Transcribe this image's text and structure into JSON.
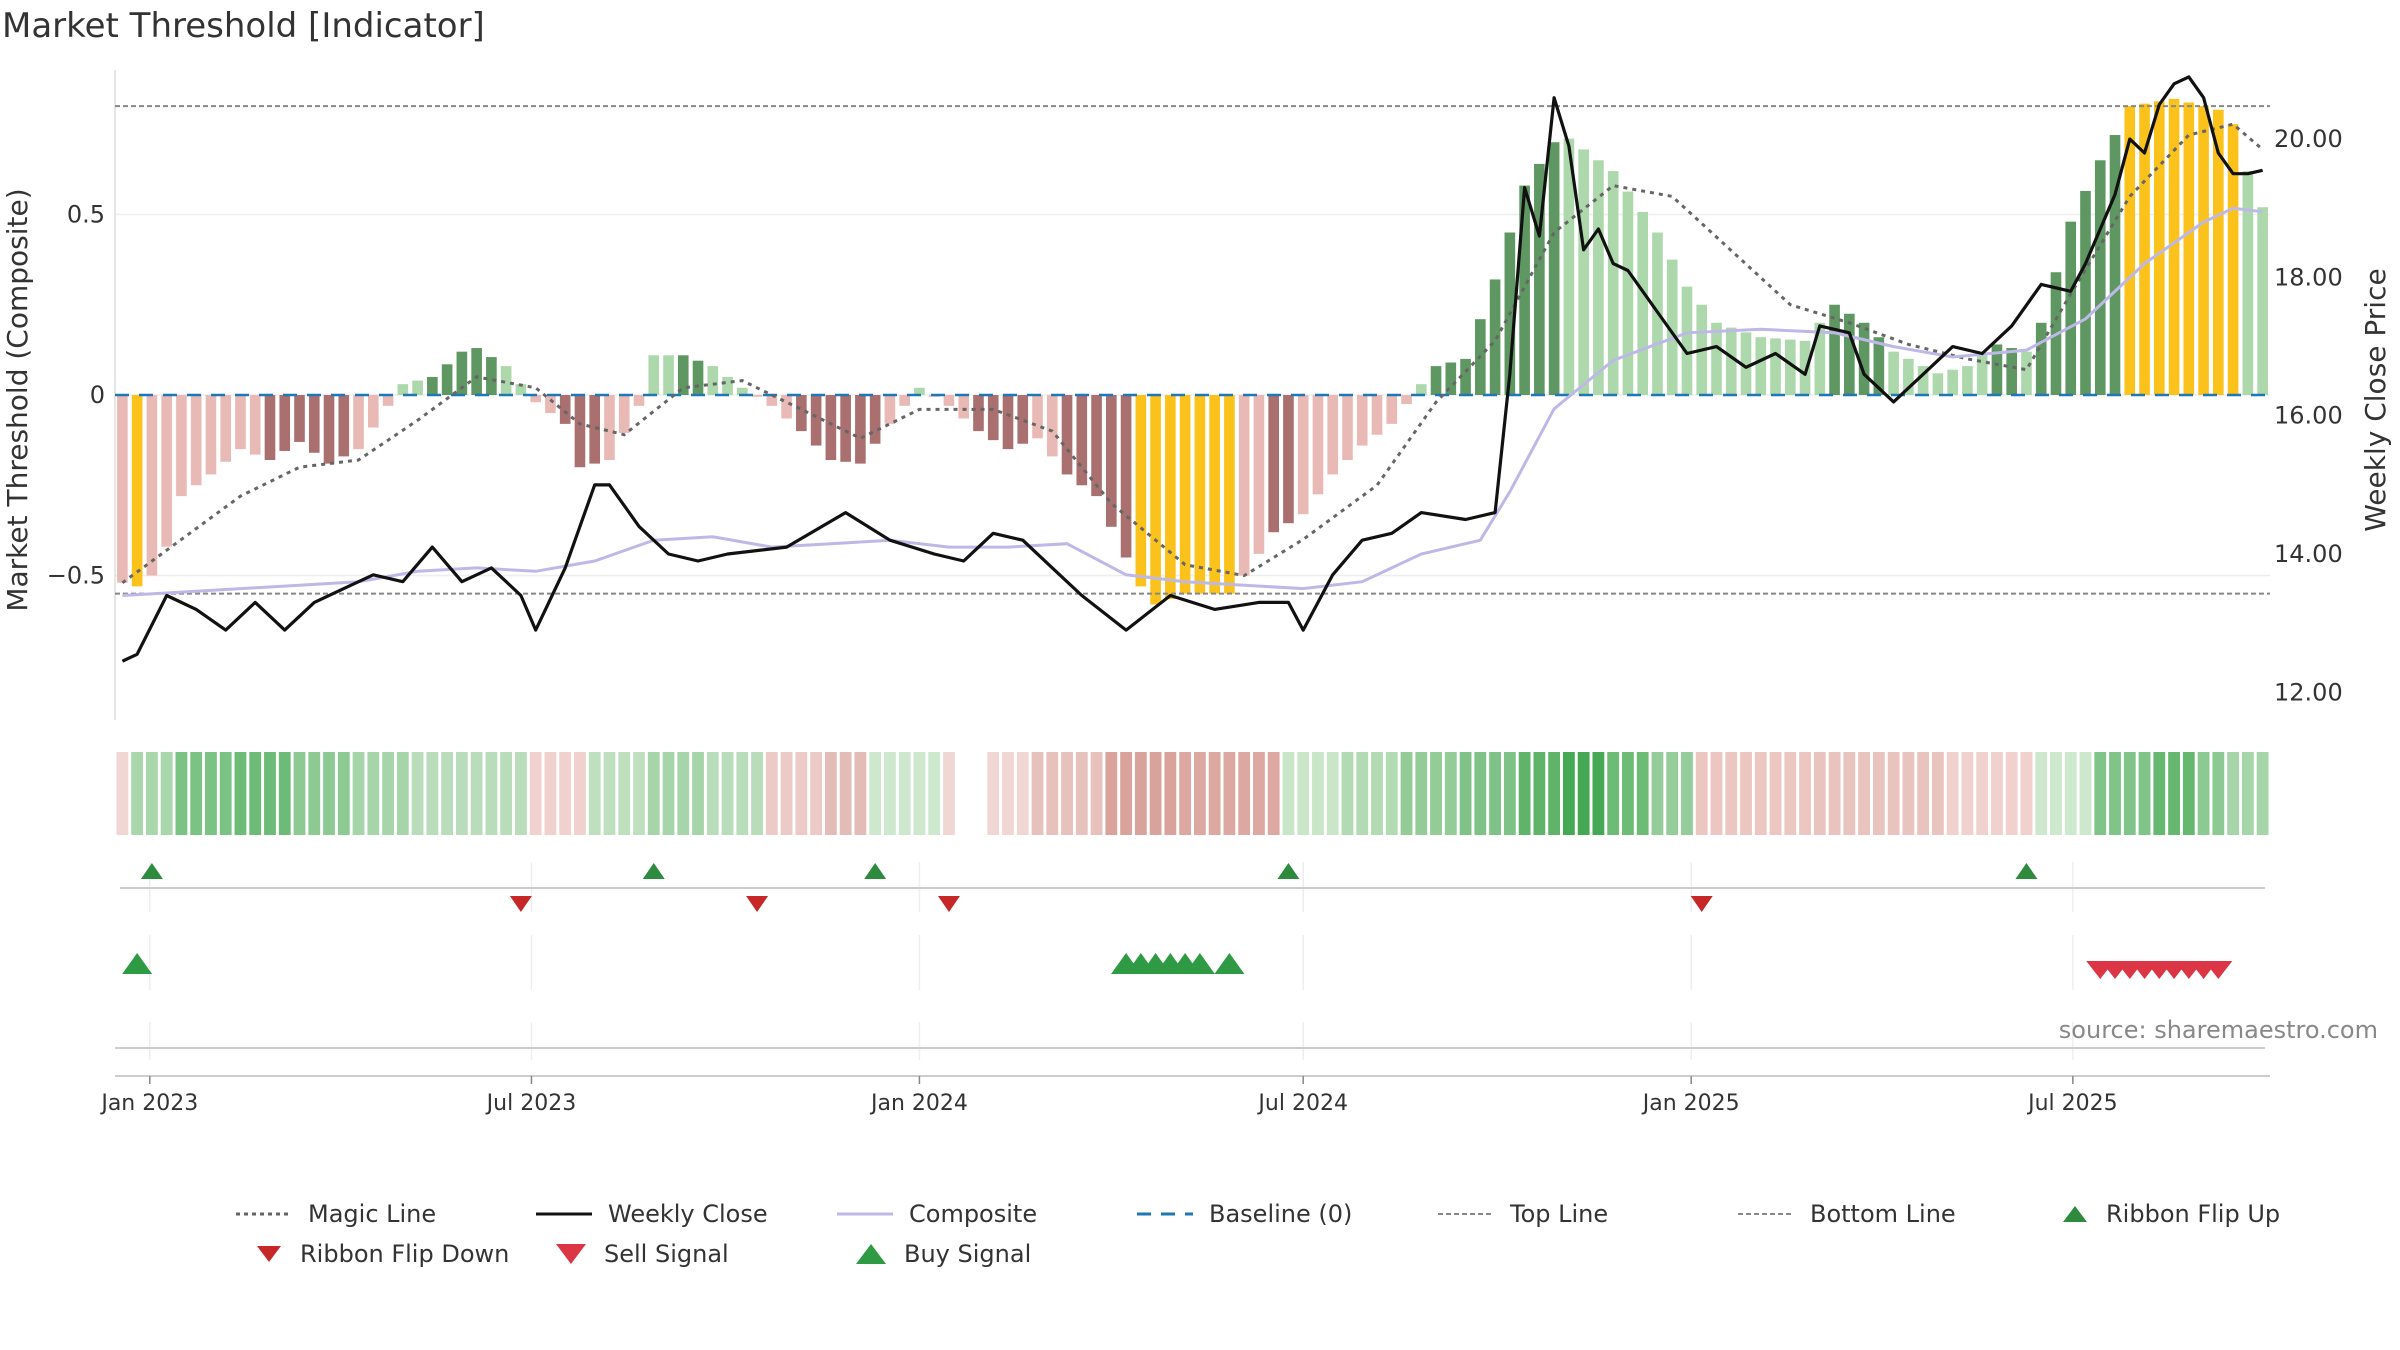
{
  "title": "Market Threshold [Indicator]",
  "source": "source: sharemaestro.com",
  "colors": {
    "positive_strong": "#5e9762",
    "positive_light": "#acd8ac",
    "negative_strong": "#a9706f",
    "negative_light": "#e9bab5",
    "highlight": "#fbc21b",
    "weekly_close": "#111111",
    "composite": "#bdb8e6",
    "magic_line": "#666666",
    "baseline": "#1f77b4",
    "threshold_lines": "#888888",
    "flip_up": "#2e8b3e",
    "flip_down": "#c62828",
    "sell_signal": "#dc3545",
    "buy_signal": "#2e9a44"
  },
  "chart_data": {
    "type": "bar",
    "left_axis": {
      "label": "Market Threshold (Composite)",
      "range": [
        -0.9,
        0.9
      ],
      "ticks": [
        -0.5,
        0,
        0.5
      ],
      "tick_labels": [
        "−0.5",
        "0",
        "0.5"
      ]
    },
    "right_axis": {
      "label": "Weekly Close Price",
      "range": [
        11.6,
        21.0
      ],
      "ticks": [
        12,
        14,
        16,
        18,
        20
      ],
      "tick_labels": [
        "12.00",
        "14.00",
        "16.00",
        "18.00",
        "20.00"
      ]
    },
    "x_axis": {
      "start": "2022-12-19",
      "end": "2025-09-29",
      "tick_dates": [
        "2023-01-01",
        "2023-07-01",
        "2024-01-01",
        "2024-07-01",
        "2025-01-01",
        "2025-07-01"
      ],
      "tick_labels": [
        "Jan 2023",
        "Jul 2023",
        "Jan 2024",
        "Jul 2024",
        "Jan 2025",
        "Jul 2025"
      ]
    },
    "top_line": 0.8,
    "bottom_line": -0.55,
    "baseline": 0,
    "bar_anchors": [
      [
        "2022-12-19",
        -0.52,
        "n"
      ],
      [
        "2022-12-26",
        -0.53,
        "y"
      ],
      [
        "2023-01-02",
        -0.5,
        "n"
      ],
      [
        "2023-01-09",
        -0.42,
        "n"
      ],
      [
        "2023-01-16",
        -0.28,
        "n"
      ],
      [
        "2023-01-30",
        -0.22,
        "n"
      ],
      [
        "2023-02-13",
        -0.15,
        "n"
      ],
      [
        "2023-02-27",
        -0.18,
        "N"
      ],
      [
        "2023-03-13",
        -0.13,
        "N"
      ],
      [
        "2023-03-27",
        -0.19,
        "N"
      ],
      [
        "2023-04-10",
        -0.15,
        "n"
      ],
      [
        "2023-04-24",
        -0.03,
        "n"
      ],
      [
        "2023-05-01",
        0.03,
        "p"
      ],
      [
        "2023-05-15",
        0.05,
        "P"
      ],
      [
        "2023-05-29",
        0.12,
        "P"
      ],
      [
        "2023-06-05",
        0.13,
        "P"
      ],
      [
        "2023-06-19",
        0.08,
        "p"
      ],
      [
        "2023-07-03",
        -0.02,
        "n"
      ],
      [
        "2023-07-17",
        -0.08,
        "N"
      ],
      [
        "2023-07-24",
        -0.2,
        "N"
      ],
      [
        "2023-08-07",
        -0.18,
        "n"
      ],
      [
        "2023-08-21",
        -0.03,
        "n"
      ],
      [
        "2023-08-28",
        0.11,
        "p"
      ],
      [
        "2023-09-11",
        0.11,
        "P"
      ],
      [
        "2023-09-25",
        0.08,
        "p"
      ],
      [
        "2023-10-09",
        0.02,
        "p"
      ],
      [
        "2023-10-23",
        -0.03,
        "n"
      ],
      [
        "2023-11-06",
        -0.1,
        "N"
      ],
      [
        "2023-11-20",
        -0.18,
        "N"
      ],
      [
        "2023-12-04",
        -0.19,
        "N"
      ],
      [
        "2023-12-18",
        -0.08,
        "n"
      ],
      [
        "2024-01-01",
        0.02,
        "p"
      ],
      [
        "2024-01-15",
        -0.03,
        "n"
      ],
      [
        "2024-01-29",
        -0.1,
        "N"
      ],
      [
        "2024-02-12",
        -0.15,
        "N"
      ],
      [
        "2024-02-26",
        -0.12,
        "n"
      ],
      [
        "2024-03-11",
        -0.22,
        "N"
      ],
      [
        "2024-03-25",
        -0.28,
        "N"
      ],
      [
        "2024-04-08",
        -0.45,
        "N"
      ],
      [
        "2024-04-15",
        -0.53,
        "y"
      ],
      [
        "2024-04-22",
        -0.58,
        "y"
      ],
      [
        "2024-05-06",
        -0.55,
        "y"
      ],
      [
        "2024-05-27",
        -0.55,
        "y"
      ],
      [
        "2024-06-03",
        -0.5,
        "n"
      ],
      [
        "2024-06-17",
        -0.38,
        "N"
      ],
      [
        "2024-07-01",
        -0.33,
        "n"
      ],
      [
        "2024-07-15",
        -0.22,
        "n"
      ],
      [
        "2024-07-29",
        -0.14,
        "n"
      ],
      [
        "2024-08-12",
        -0.08,
        "n"
      ],
      [
        "2024-08-26",
        0.03,
        "p"
      ],
      [
        "2024-09-02",
        0.08,
        "P"
      ],
      [
        "2024-09-16",
        0.1,
        "P"
      ],
      [
        "2024-09-30",
        0.32,
        "P"
      ],
      [
        "2024-10-14",
        0.58,
        "P"
      ],
      [
        "2024-10-28",
        0.7,
        "P"
      ],
      [
        "2024-11-04",
        0.71,
        "p"
      ],
      [
        "2024-11-25",
        0.62,
        "p"
      ],
      [
        "2024-12-16",
        0.45,
        "p"
      ],
      [
        "2024-12-30",
        0.3,
        "p"
      ],
      [
        "2025-01-13",
        0.2,
        "p"
      ],
      [
        "2025-02-03",
        0.16,
        "p"
      ],
      [
        "2025-02-24",
        0.15,
        "p"
      ],
      [
        "2025-03-10",
        0.25,
        "P"
      ],
      [
        "2025-03-24",
        0.2,
        "P"
      ],
      [
        "2025-04-07",
        0.12,
        "p"
      ],
      [
        "2025-04-28",
        0.06,
        "p"
      ],
      [
        "2025-05-12",
        0.08,
        "p"
      ],
      [
        "2025-05-26",
        0.14,
        "P"
      ],
      [
        "2025-06-09",
        0.12,
        "p"
      ],
      [
        "2025-06-16",
        0.2,
        "P"
      ],
      [
        "2025-06-30",
        0.48,
        "P"
      ],
      [
        "2025-07-14",
        0.65,
        "P"
      ],
      [
        "2025-07-21",
        0.72,
        "P"
      ],
      [
        "2025-07-28",
        0.8,
        "y"
      ],
      [
        "2025-08-18",
        0.82,
        "y"
      ],
      [
        "2025-09-08",
        0.79,
        "y"
      ],
      [
        "2025-09-15",
        0.75,
        "y"
      ],
      [
        "2025-09-22",
        0.62,
        "p"
      ],
      [
        "2025-09-29",
        0.52,
        "p"
      ]
    ],
    "magic_line": [
      [
        "2022-12-19",
        -0.52
      ],
      [
        "2023-01-16",
        -0.4
      ],
      [
        "2023-02-13",
        -0.28
      ],
      [
        "2023-03-13",
        -0.2
      ],
      [
        "2023-04-10",
        -0.18
      ],
      [
        "2023-05-08",
        -0.07
      ],
      [
        "2023-06-05",
        0.05
      ],
      [
        "2023-07-03",
        0.02
      ],
      [
        "2023-07-24",
        -0.08
      ],
      [
        "2023-08-14",
        -0.11
      ],
      [
        "2023-09-11",
        0.02
      ],
      [
        "2023-10-09",
        0.04
      ],
      [
        "2023-11-06",
        -0.04
      ],
      [
        "2023-12-04",
        -0.12
      ],
      [
        "2024-01-01",
        -0.04
      ],
      [
        "2024-02-05",
        -0.04
      ],
      [
        "2024-03-04",
        -0.1
      ],
      [
        "2024-04-01",
        -0.3
      ],
      [
        "2024-05-06",
        -0.47
      ],
      [
        "2024-06-03",
        -0.5
      ],
      [
        "2024-07-01",
        -0.4
      ],
      [
        "2024-08-05",
        -0.25
      ],
      [
        "2024-09-02",
        -0.02
      ],
      [
        "2024-09-30",
        0.15
      ],
      [
        "2024-10-28",
        0.45
      ],
      [
        "2024-11-25",
        0.58
      ],
      [
        "2024-12-23",
        0.55
      ],
      [
        "2025-01-20",
        0.4
      ],
      [
        "2025-02-17",
        0.25
      ],
      [
        "2025-03-17",
        0.2
      ],
      [
        "2025-04-14",
        0.14
      ],
      [
        "2025-05-12",
        0.1
      ],
      [
        "2025-06-09",
        0.07
      ],
      [
        "2025-06-30",
        0.28
      ],
      [
        "2025-07-28",
        0.55
      ],
      [
        "2025-08-25",
        0.72
      ],
      [
        "2025-09-15",
        0.75
      ],
      [
        "2025-09-29",
        0.68
      ]
    ],
    "composite": [
      [
        "2022-12-19",
        13.4
      ],
      [
        "2023-01-16",
        13.45
      ],
      [
        "2023-02-13",
        13.5
      ],
      [
        "2023-03-13",
        13.55
      ],
      [
        "2023-04-10",
        13.6
      ],
      [
        "2023-05-08",
        13.75
      ],
      [
        "2023-06-05",
        13.8
      ],
      [
        "2023-07-03",
        13.75
      ],
      [
        "2023-07-31",
        13.9
      ],
      [
        "2023-08-28",
        14.2
      ],
      [
        "2023-09-25",
        14.25
      ],
      [
        "2023-10-23",
        14.1
      ],
      [
        "2023-11-20",
        14.15
      ],
      [
        "2023-12-18",
        14.2
      ],
      [
        "2024-01-15",
        14.1
      ],
      [
        "2024-02-12",
        14.1
      ],
      [
        "2024-03-11",
        14.15
      ],
      [
        "2024-04-08",
        13.7
      ],
      [
        "2024-05-06",
        13.6
      ],
      [
        "2024-06-03",
        13.55
      ],
      [
        "2024-07-01",
        13.5
      ],
      [
        "2024-07-29",
        13.6
      ],
      [
        "2024-08-26",
        14.0
      ],
      [
        "2024-09-23",
        14.2
      ],
      [
        "2024-10-07",
        14.9
      ],
      [
        "2024-10-28",
        16.1
      ],
      [
        "2024-11-25",
        16.8
      ],
      [
        "2024-12-30",
        17.2
      ],
      [
        "2025-02-03",
        17.25
      ],
      [
        "2025-03-10",
        17.2
      ],
      [
        "2025-04-07",
        17.0
      ],
      [
        "2025-05-05",
        16.85
      ],
      [
        "2025-06-09",
        16.95
      ],
      [
        "2025-07-07",
        17.4
      ],
      [
        "2025-08-04",
        18.2
      ],
      [
        "2025-09-01",
        18.8
      ],
      [
        "2025-09-15",
        19.0
      ],
      [
        "2025-09-29",
        18.95
      ]
    ],
    "weekly_close": [
      [
        "2022-12-19",
        12.45
      ],
      [
        "2022-12-26",
        12.55
      ],
      [
        "2023-01-09",
        13.4
      ],
      [
        "2023-01-23",
        13.2
      ],
      [
        "2023-02-06",
        12.9
      ],
      [
        "2023-02-20",
        13.3
      ],
      [
        "2023-03-06",
        12.9
      ],
      [
        "2023-03-20",
        13.3
      ],
      [
        "2023-04-03",
        13.5
      ],
      [
        "2023-04-17",
        13.7
      ],
      [
        "2023-05-01",
        13.6
      ],
      [
        "2023-05-15",
        14.1
      ],
      [
        "2023-05-29",
        13.6
      ],
      [
        "2023-06-12",
        13.8
      ],
      [
        "2023-06-26",
        13.4
      ],
      [
        "2023-07-03",
        12.9
      ],
      [
        "2023-07-17",
        13.8
      ],
      [
        "2023-07-31",
        15.0
      ],
      [
        "2023-08-07",
        15.0
      ],
      [
        "2023-08-21",
        14.4
      ],
      [
        "2023-09-04",
        14.0
      ],
      [
        "2023-09-18",
        13.9
      ],
      [
        "2023-10-02",
        14.0
      ],
      [
        "2023-10-30",
        14.1
      ],
      [
        "2023-11-27",
        14.6
      ],
      [
        "2023-12-18",
        14.2
      ],
      [
        "2024-01-08",
        14.0
      ],
      [
        "2024-01-22",
        13.9
      ],
      [
        "2024-02-05",
        14.3
      ],
      [
        "2024-02-19",
        14.2
      ],
      [
        "2024-03-04",
        13.8
      ],
      [
        "2024-03-18",
        13.4
      ],
      [
        "2024-04-08",
        12.9
      ],
      [
        "2024-04-29",
        13.4
      ],
      [
        "2024-05-20",
        13.2
      ],
      [
        "2024-06-10",
        13.3
      ],
      [
        "2024-06-24",
        13.3
      ],
      [
        "2024-07-01",
        12.9
      ],
      [
        "2024-07-15",
        13.7
      ],
      [
        "2024-07-29",
        14.2
      ],
      [
        "2024-08-12",
        14.3
      ],
      [
        "2024-08-26",
        14.6
      ],
      [
        "2024-09-16",
        14.5
      ],
      [
        "2024-09-30",
        14.6
      ],
      [
        "2024-10-07",
        16.6
      ],
      [
        "2024-10-14",
        19.3
      ],
      [
        "2024-10-21",
        18.6
      ],
      [
        "2024-10-28",
        20.6
      ],
      [
        "2024-11-04",
        19.9
      ],
      [
        "2024-11-11",
        18.4
      ],
      [
        "2024-11-18",
        18.7
      ],
      [
        "2024-11-25",
        18.2
      ],
      [
        "2024-12-02",
        18.1
      ],
      [
        "2024-12-16",
        17.5
      ],
      [
        "2024-12-30",
        16.9
      ],
      [
        "2025-01-13",
        17.0
      ],
      [
        "2025-01-27",
        16.7
      ],
      [
        "2025-02-10",
        16.9
      ],
      [
        "2025-02-24",
        16.6
      ],
      [
        "2025-03-03",
        17.3
      ],
      [
        "2025-03-17",
        17.2
      ],
      [
        "2025-03-24",
        16.6
      ],
      [
        "2025-04-07",
        16.2
      ],
      [
        "2025-04-21",
        16.6
      ],
      [
        "2025-05-05",
        17.0
      ],
      [
        "2025-05-19",
        16.9
      ],
      [
        "2025-06-02",
        17.3
      ],
      [
        "2025-06-16",
        17.9
      ],
      [
        "2025-06-30",
        17.8
      ],
      [
        "2025-07-07",
        18.2
      ],
      [
        "2025-07-21",
        19.2
      ],
      [
        "2025-07-28",
        20.0
      ],
      [
        "2025-08-04",
        19.8
      ],
      [
        "2025-08-11",
        20.5
      ],
      [
        "2025-08-18",
        20.8
      ],
      [
        "2025-08-25",
        20.9
      ],
      [
        "2025-09-01",
        20.6
      ],
      [
        "2025-09-08",
        19.8
      ],
      [
        "2025-09-15",
        19.5
      ],
      [
        "2025-09-22",
        19.5
      ],
      [
        "2025-09-29",
        19.55
      ]
    ],
    "ribbon": [
      [
        "2022-12-19",
        "#f0d7d4"
      ],
      [
        "2022-12-26",
        "#a9d6ab"
      ],
      [
        "2023-01-16",
        "#7bc285"
      ],
      [
        "2023-02-13",
        "#6cbb76"
      ],
      [
        "2023-03-13",
        "#8dca93"
      ],
      [
        "2023-04-10",
        "#a6d5a9"
      ],
      [
        "2023-05-08",
        "#b9ddba"
      ],
      [
        "2023-07-03",
        "#f0d1ce"
      ],
      [
        "2023-07-31",
        "#bfe0bf"
      ],
      [
        "2023-08-28",
        "#a6d5a9"
      ],
      [
        "2023-09-25",
        "#b9ddba"
      ],
      [
        "2023-10-23",
        "#eccbc7"
      ],
      [
        "2023-11-20",
        "#e4bcb7"
      ],
      [
        "2023-12-11",
        "#cde8cd"
      ],
      [
        "2024-01-15",
        "#f0d7d4"
      ],
      [
        "2024-02-26",
        "#e7c1bc"
      ],
      [
        "2024-04-01",
        "#d9a29b"
      ],
      [
        "2024-05-06",
        "#dca8a1"
      ],
      [
        "2024-06-24",
        "#c9e6c9"
      ],
      [
        "2024-07-22",
        "#b2dab3"
      ],
      [
        "2024-08-19",
        "#93cc97"
      ],
      [
        "2024-09-16",
        "#7fc287"
      ],
      [
        "2024-10-14",
        "#5fb46a"
      ],
      [
        "2024-11-04",
        "#45a854"
      ],
      [
        "2024-11-25",
        "#6dbc76"
      ],
      [
        "2024-12-16",
        "#94cd99"
      ],
      [
        "2025-01-06",
        "#ecc6c1"
      ],
      [
        "2025-03-03",
        "#e9c3be"
      ],
      [
        "2025-05-05",
        "#f0d1ce"
      ],
      [
        "2025-06-16",
        "#cde8cd"
      ],
      [
        "2025-07-14",
        "#80c489"
      ],
      [
        "2025-08-11",
        "#66b870"
      ],
      [
        "2025-09-01",
        "#8dca93"
      ],
      [
        "2025-09-15",
        "#a6d5a9"
      ]
    ],
    "ribbon_gap": [
      "2024-01-22",
      "2024-01-29"
    ],
    "flip_up": [
      "2023-01-02",
      "2023-08-28",
      "2023-12-11",
      "2024-06-24",
      "2025-06-09"
    ],
    "flip_down": [
      "2023-06-26",
      "2023-10-16",
      "2024-01-15",
      "2025-01-06"
    ],
    "buy_signals": [
      "2022-12-26",
      "2024-04-08",
      "2024-04-15",
      "2024-04-22",
      "2024-04-29",
      "2024-05-06",
      "2024-05-13",
      "2024-05-27"
    ],
    "sell_signals": [
      "2025-07-14",
      "2025-07-21",
      "2025-07-28",
      "2025-08-04",
      "2025-08-11",
      "2025-08-18",
      "2025-08-25",
      "2025-09-01",
      "2025-09-08"
    ]
  },
  "legend": {
    "magic_line": "Magic Line",
    "weekly_close": "Weekly Close",
    "composite": "Composite",
    "baseline": "Baseline (0)",
    "top_line": "Top Line",
    "bottom_line": "Bottom Line",
    "ribbon_flip_up": "Ribbon Flip Up",
    "ribbon_flip_down": "Ribbon Flip Down",
    "sell_signal": "Sell Signal",
    "buy_signal": "Buy Signal"
  }
}
